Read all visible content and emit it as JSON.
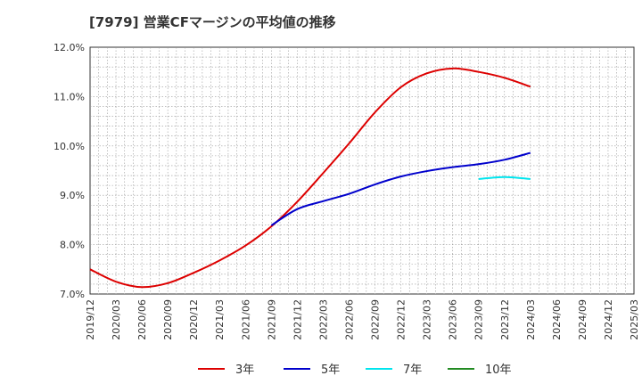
{
  "title": "[7979]  営業CFマージンの平均値の推移",
  "chart_data": {
    "type": "line",
    "title": "[7979]  営業CFマージンの平均値の推移",
    "xlabel": "",
    "ylabel": "",
    "x_tick_labels": [
      "2019/12",
      "2020/03",
      "2020/06",
      "2020/09",
      "2020/12",
      "2021/03",
      "2021/06",
      "2021/09",
      "2021/12",
      "2022/03",
      "2022/06",
      "2022/09",
      "2022/12",
      "2023/03",
      "2023/06",
      "2023/09",
      "2023/12",
      "2024/03",
      "2024/06",
      "2024/09",
      "2024/12",
      "2025/03"
    ],
    "y_tick_labels": [
      "7.0%",
      "8.0%",
      "9.0%",
      "10.0%",
      "11.0%",
      "12.0%"
    ],
    "ylim": [
      7.0,
      12.0
    ],
    "y_ticks": [
      7.0,
      8.0,
      9.0,
      10.0,
      11.0,
      12.0
    ],
    "grid": true,
    "legend_position": "bottom",
    "series": [
      {
        "name": "3年",
        "color": "#dd0000",
        "x": [
          "2019/12",
          "2020/03",
          "2020/06",
          "2020/09",
          "2020/12",
          "2021/03",
          "2021/06",
          "2021/09",
          "2021/12",
          "2022/03",
          "2022/06",
          "2022/09",
          "2022/12",
          "2023/03",
          "2023/06",
          "2023/09",
          "2023/12",
          "2024/03"
        ],
        "values": [
          7.5,
          7.25,
          7.14,
          7.22,
          7.43,
          7.68,
          7.98,
          8.37,
          8.87,
          9.45,
          10.05,
          10.68,
          11.19,
          11.47,
          11.57,
          11.5,
          11.38,
          11.2
        ]
      },
      {
        "name": "5年",
        "color": "#0000cc",
        "x": [
          "2021/09",
          "2021/12",
          "2022/03",
          "2022/06",
          "2022/09",
          "2022/12",
          "2023/03",
          "2023/06",
          "2023/09",
          "2023/12",
          "2024/03"
        ],
        "values": [
          8.39,
          8.72,
          8.88,
          9.03,
          9.22,
          9.38,
          9.49,
          9.57,
          9.63,
          9.72,
          9.86
        ]
      },
      {
        "name": "7年",
        "color": "#00e5ee",
        "x": [
          "2023/09",
          "2023/12",
          "2024/03"
        ],
        "values": [
          9.33,
          9.37,
          9.33
        ]
      },
      {
        "name": "10年",
        "color": "#228b22",
        "x": [],
        "values": []
      }
    ]
  }
}
